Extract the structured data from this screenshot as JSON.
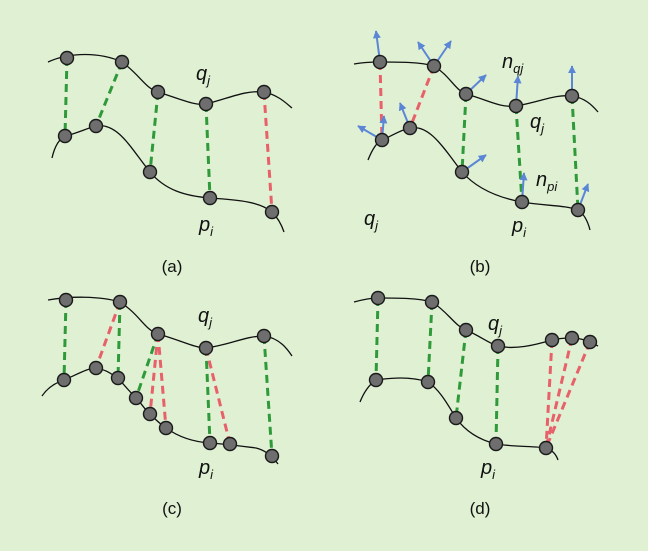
{
  "colors": {
    "background": "#dff0d3",
    "match_good": "#2f9a3a",
    "match_bad": "#e8606a",
    "normal": "#5b86d6",
    "point_fill": "#6e6e6e"
  },
  "labels": {
    "q": "q",
    "q_sub": "j",
    "p": "p",
    "p_sub": "i",
    "n": "n",
    "nq_sub": "qj",
    "np_sub": "pi"
  },
  "captions": {
    "a": "(a)",
    "b": "(b)",
    "c": "(c)",
    "d": "(d)"
  }
}
